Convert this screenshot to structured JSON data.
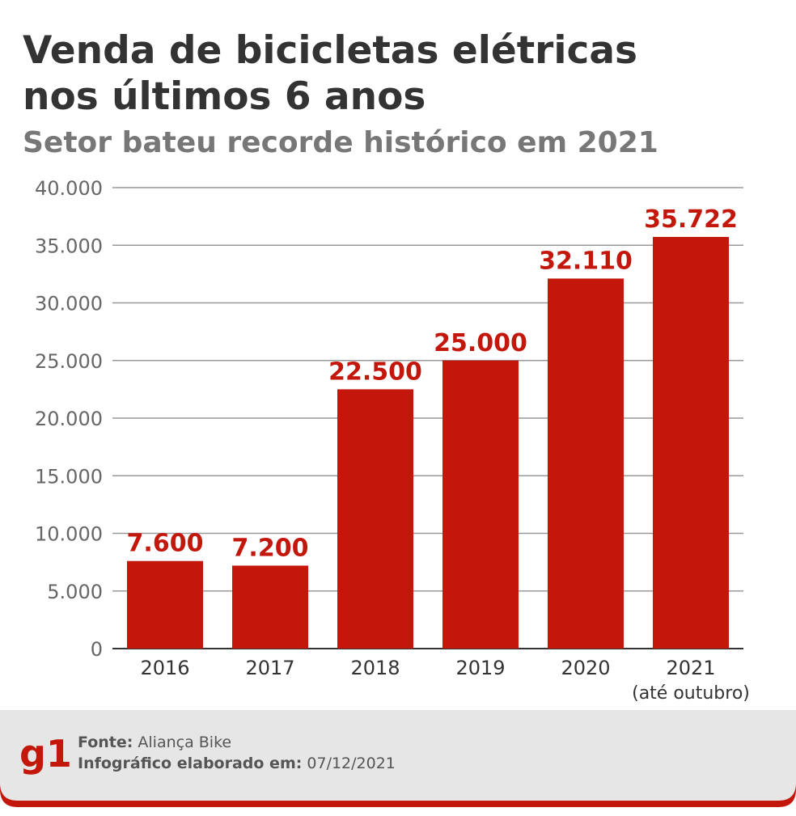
{
  "chart_data": {
    "type": "bar",
    "title": "Venda de bicicletas elétricas",
    "title_line2": "nos últimos 6 anos",
    "subtitle": "Setor bateu recorde histórico em 2021",
    "categories": [
      "2016",
      "2017",
      "2018",
      "2019",
      "2020",
      "2021"
    ],
    "category_sublabels": [
      null,
      null,
      null,
      null,
      null,
      "(até outubro)"
    ],
    "values": [
      7600,
      7200,
      22500,
      25000,
      32110,
      35722
    ],
    "value_labels": [
      "7.600",
      "7.200",
      "22.500",
      "25.000",
      "32.110",
      "35.722"
    ],
    "color": "#c4170c",
    "ylim": [
      0,
      40000
    ],
    "yticks": [
      0,
      {
        "value": 5000,
        "label": "5.000"
      },
      {
        "value": 10000,
        "label": "10.000"
      },
      {
        "value": 15000,
        "label": "15.000"
      },
      {
        "value": 20000,
        "label": "20.000"
      },
      {
        "value": 25000,
        "label": "25.000"
      },
      {
        "value": 30000,
        "label": "30.000"
      },
      {
        "value": 35000,
        "label": "35.000"
      },
      {
        "value": 40000,
        "label": "40.000"
      }
    ],
    "grid": true
  },
  "footer": {
    "logo": "g1",
    "source_label": "Fonte:",
    "source": "Aliança Bike",
    "date_label": "Infográfico elaborado em:",
    "date": "07/12/2021"
  }
}
